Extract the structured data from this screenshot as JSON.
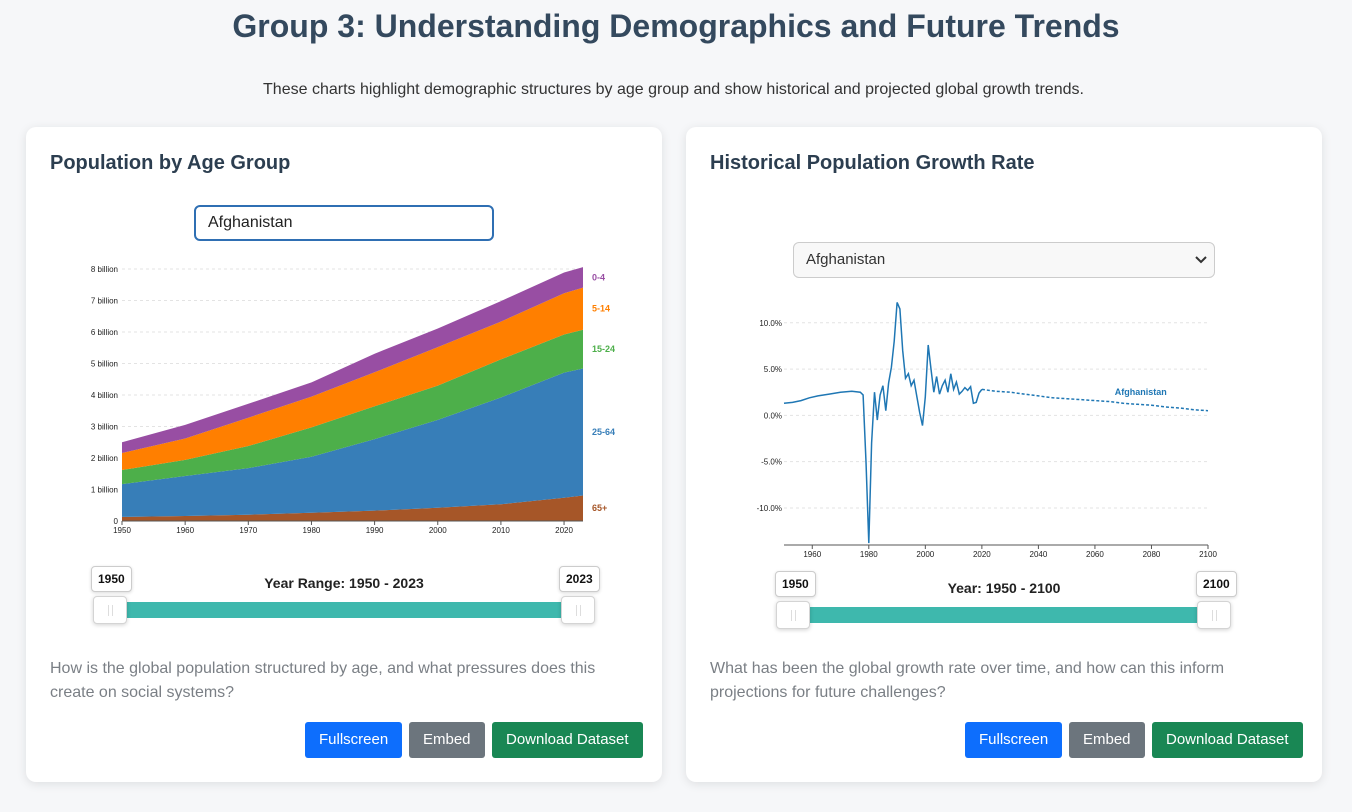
{
  "header": {
    "title": "Group 3: Understanding Demographics and Future Trends",
    "subtitle": "These charts highlight demographic structures by age group and show historical and projected global growth trends."
  },
  "colors": {
    "age_0_4": "#984ea3",
    "age_5_14": "#ff7f00",
    "age_15_24": "#4daf4a",
    "age_25_64": "#377eb8",
    "age_65_plus": "#a65628",
    "growth_line": "#1f77b4",
    "slider": "#3eb8ad",
    "btn_fullscreen": "#0d6efd",
    "btn_embed": "#6c757d",
    "btn_download": "#198754"
  },
  "age_card": {
    "title": "Population by Age Group",
    "country_value": "Afghanistan",
    "range_label": "Year Range: 1950 - 2023",
    "range_start": "1950",
    "range_end": "2023",
    "question": "How is the global population structured by age, and what pressures does this create on social systems?",
    "buttons": {
      "fullscreen": "Fullscreen",
      "embed": "Embed",
      "download": "Download Dataset"
    }
  },
  "growth_card": {
    "title": "Historical Population Growth Rate",
    "country_value": "Afghanistan",
    "range_label": "Year: 1950 - 2100",
    "range_start": "1950",
    "range_end": "2100",
    "question": "What has been the global growth rate over time, and how can this inform projections for future challenges?",
    "buttons": {
      "fullscreen": "Fullscreen",
      "embed": "Embed",
      "download": "Download Dataset"
    }
  },
  "chart_data": [
    {
      "type": "area",
      "title": "",
      "x": [
        1950,
        1960,
        1970,
        1980,
        1990,
        2000,
        2010,
        2020,
        2023
      ],
      "xlim": [
        1950,
        2023
      ],
      "ylim": [
        0,
        8
      ],
      "x_ticks": [
        "1950",
        "1960",
        "1970",
        "1980",
        "1990",
        "2000",
        "2010",
        "2020"
      ],
      "y_ticks": [
        "0",
        "1 billion",
        "2 billion",
        "3 billion",
        "4 billion",
        "5 billion",
        "6 billion",
        "7 billion",
        "8 billion"
      ],
      "y_unit": "billion",
      "grid": true,
      "series": [
        {
          "name": "65+",
          "values": [
            0.13,
            0.16,
            0.2,
            0.26,
            0.33,
            0.42,
            0.53,
            0.74,
            0.81
          ]
        },
        {
          "name": "25-64",
          "values": [
            1.04,
            1.27,
            1.48,
            1.78,
            2.27,
            2.79,
            3.39,
            3.97,
            4.03
          ]
        },
        {
          "name": "15-24",
          "values": [
            0.45,
            0.51,
            0.7,
            0.93,
            1.04,
            1.09,
            1.21,
            1.21,
            1.23
          ]
        },
        {
          "name": "5-14",
          "values": [
            0.54,
            0.68,
            0.9,
            0.98,
            1.08,
            1.22,
            1.2,
            1.31,
            1.34
          ]
        },
        {
          "name": "0-4",
          "values": [
            0.34,
            0.43,
            0.44,
            0.45,
            0.59,
            0.59,
            0.65,
            0.66,
            0.65
          ]
        }
      ]
    },
    {
      "type": "line",
      "title": "",
      "xlim": [
        1950,
        2100
      ],
      "ylim": [
        -14,
        13
      ],
      "x_ticks": [
        "1960",
        "1980",
        "2000",
        "2020",
        "2040",
        "2060",
        "2080",
        "2100"
      ],
      "y_ticks": [
        "-10.0%",
        "-5.0%",
        "0.0%",
        "5.0%",
        "10.0%"
      ],
      "y_tick_values": [
        -10,
        -5,
        0,
        5,
        10
      ],
      "grid": true,
      "series": [
        {
          "name": "Afghanistan",
          "historical": [
            [
              1950,
              1.3
            ],
            [
              1953,
              1.4
            ],
            [
              1956,
              1.6
            ],
            [
              1959,
              1.9
            ],
            [
              1962,
              2.1
            ],
            [
              1966,
              2.3
            ],
            [
              1970,
              2.5
            ],
            [
              1974,
              2.6
            ],
            [
              1977,
              2.5
            ],
            [
              1978,
              2.2
            ],
            [
              1979,
              -5
            ],
            [
              1980,
              -13.8
            ],
            [
              1981,
              -3
            ],
            [
              1982,
              2.5
            ],
            [
              1983,
              -0.5
            ],
            [
              1984,
              2.2
            ],
            [
              1985,
              3.2
            ],
            [
              1986,
              0.5
            ],
            [
              1987,
              3.5
            ],
            [
              1988,
              5.2
            ],
            [
              1989,
              8
            ],
            [
              1990,
              12.2
            ],
            [
              1991,
              11.5
            ],
            [
              1992,
              7
            ],
            [
              1993,
              4
            ],
            [
              1994,
              4.5
            ],
            [
              1995,
              3.2
            ],
            [
              1996,
              3.8
            ],
            [
              1997,
              2
            ],
            [
              1998,
              0.3
            ],
            [
              1999,
              -1.1
            ],
            [
              2000,
              2
            ],
            [
              2001,
              7.6
            ],
            [
              2002,
              5
            ],
            [
              2003,
              2.5
            ],
            [
              2004,
              4.2
            ],
            [
              2005,
              2.3
            ],
            [
              2006,
              3.2
            ],
            [
              2007,
              3.8
            ],
            [
              2008,
              2.5
            ],
            [
              2009,
              4.5
            ],
            [
              2010,
              2.8
            ],
            [
              2011,
              3.6
            ],
            [
              2012,
              2.3
            ],
            [
              2013,
              2.6
            ],
            [
              2014,
              3.0
            ],
            [
              2015,
              2.7
            ],
            [
              2016,
              3.1
            ],
            [
              2017,
              1.3
            ],
            [
              2018,
              1.4
            ],
            [
              2019,
              2.4
            ],
            [
              2020,
              2.8
            ]
          ],
          "projected": [
            [
              2020,
              2.8
            ],
            [
              2025,
              2.6
            ],
            [
              2030,
              2.5
            ],
            [
              2035,
              2.3
            ],
            [
              2040,
              2.1
            ],
            [
              2045,
              1.9
            ],
            [
              2050,
              1.8
            ],
            [
              2055,
              1.7
            ],
            [
              2060,
              1.6
            ],
            [
              2065,
              1.5
            ],
            [
              2070,
              1.3
            ],
            [
              2075,
              1.2
            ],
            [
              2080,
              1.1
            ],
            [
              2085,
              0.9
            ],
            [
              2090,
              0.8
            ],
            [
              2095,
              0.6
            ],
            [
              2100,
              0.5
            ]
          ]
        }
      ]
    }
  ]
}
